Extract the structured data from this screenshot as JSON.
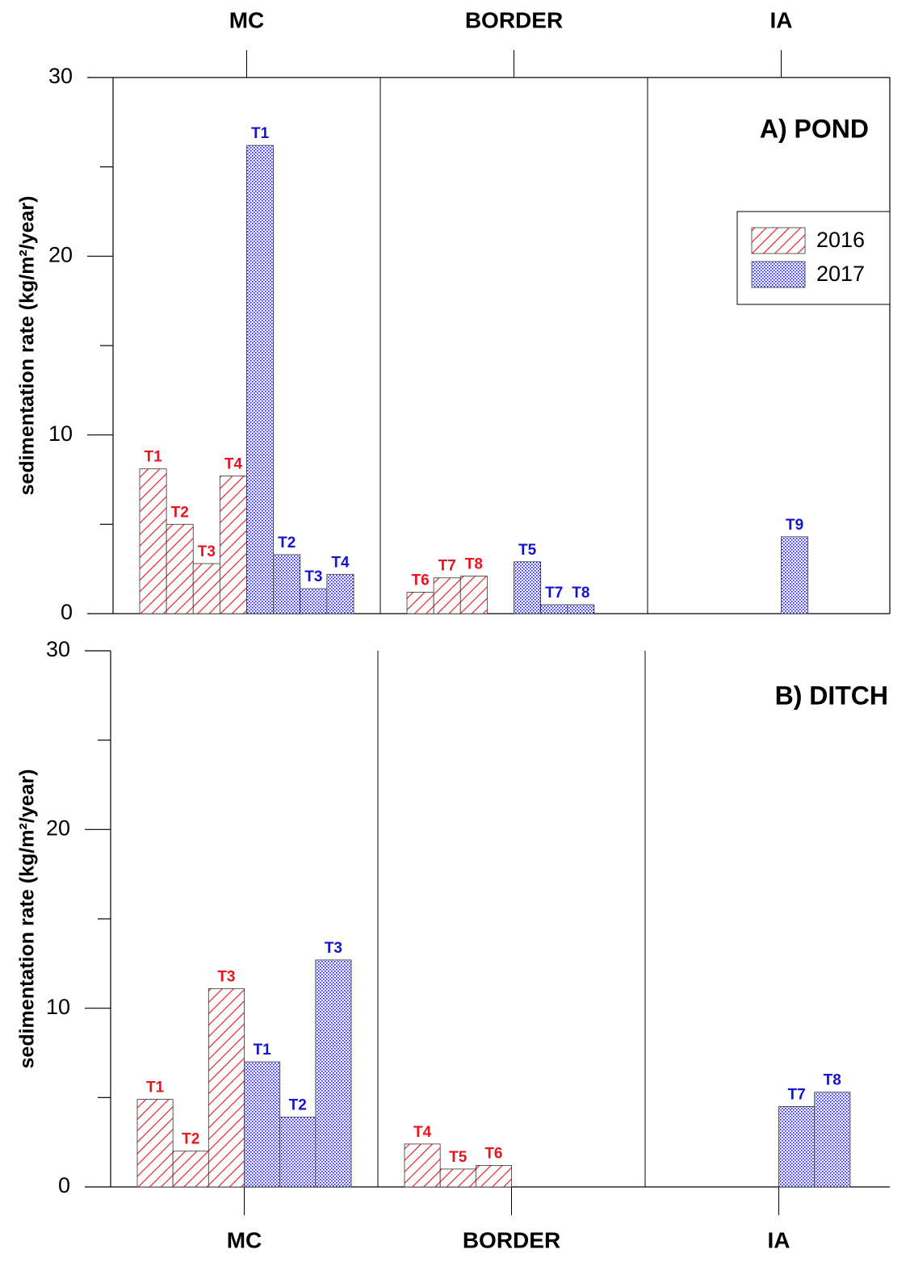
{
  "chart_data": [
    {
      "type": "bar",
      "title": "A) POND",
      "ylabel": "sedimentation rate (kg/m²/year)",
      "categories": [
        "MC",
        "BORDER",
        "IA"
      ],
      "category_axis": "top",
      "ylim": [
        0,
        30
      ],
      "yticks": [
        0,
        10,
        20,
        30
      ],
      "minor_yticks": [
        5,
        15,
        25
      ],
      "legend": "upper right",
      "frame": "box",
      "series": [
        {
          "name": "2016",
          "color": "#e8141e",
          "pattern": "hatch",
          "groups": [
            [
              {
                "label": "T1",
                "value": 8.1
              },
              {
                "label": "T2",
                "value": 5.0
              },
              {
                "label": "T3",
                "value": 2.8
              },
              {
                "label": "T4",
                "value": 7.7
              }
            ],
            [
              {
                "label": "T6",
                "value": 1.2
              },
              {
                "label": "T7",
                "value": 2.0
              },
              {
                "label": "T8",
                "value": 2.1
              }
            ],
            []
          ]
        },
        {
          "name": "2017",
          "color": "#1414c8",
          "pattern": "dots",
          "groups": [
            [
              {
                "label": "T1",
                "value": 26.2
              },
              {
                "label": "T2",
                "value": 3.3
              },
              {
                "label": "T3",
                "value": 1.4
              },
              {
                "label": "T4",
                "value": 2.2
              }
            ],
            [
              {
                "label": "T5",
                "value": 2.9
              },
              {
                "label": "T7",
                "value": 0.5
              },
              {
                "label": "T8",
                "value": 0.5
              }
            ],
            [
              {
                "label": "T9",
                "value": 4.3
              }
            ]
          ]
        }
      ]
    },
    {
      "type": "bar",
      "title": "B) DITCH",
      "ylabel": "sedimentation rate (kg/m²/year)",
      "categories": [
        "MC",
        "BORDER",
        "IA"
      ],
      "category_axis": "bottom",
      "ylim": [
        0,
        30
      ],
      "yticks": [
        0,
        10,
        20,
        30
      ],
      "minor_yticks": [
        5,
        15,
        25
      ],
      "frame": "open",
      "series": [
        {
          "name": "2016",
          "color": "#e8141e",
          "pattern": "hatch",
          "groups": [
            [
              {
                "label": "T1",
                "value": 4.9
              },
              {
                "label": "T2",
                "value": 2.0
              },
              {
                "label": "T3",
                "value": 11.1
              }
            ],
            [
              {
                "label": "T4",
                "value": 2.4
              },
              {
                "label": "T5",
                "value": 1.0
              },
              {
                "label": "T6",
                "value": 1.2
              }
            ],
            []
          ]
        },
        {
          "name": "2017",
          "color": "#1414c8",
          "pattern": "dots",
          "groups": [
            [
              {
                "label": "T1",
                "value": 7.0
              },
              {
                "label": "T2",
                "value": 3.9
              },
              {
                "label": "T3",
                "value": 12.7
              }
            ],
            [],
            [
              {
                "label": "T7",
                "value": 4.5
              },
              {
                "label": "T8",
                "value": 5.3
              }
            ]
          ]
        }
      ]
    }
  ]
}
